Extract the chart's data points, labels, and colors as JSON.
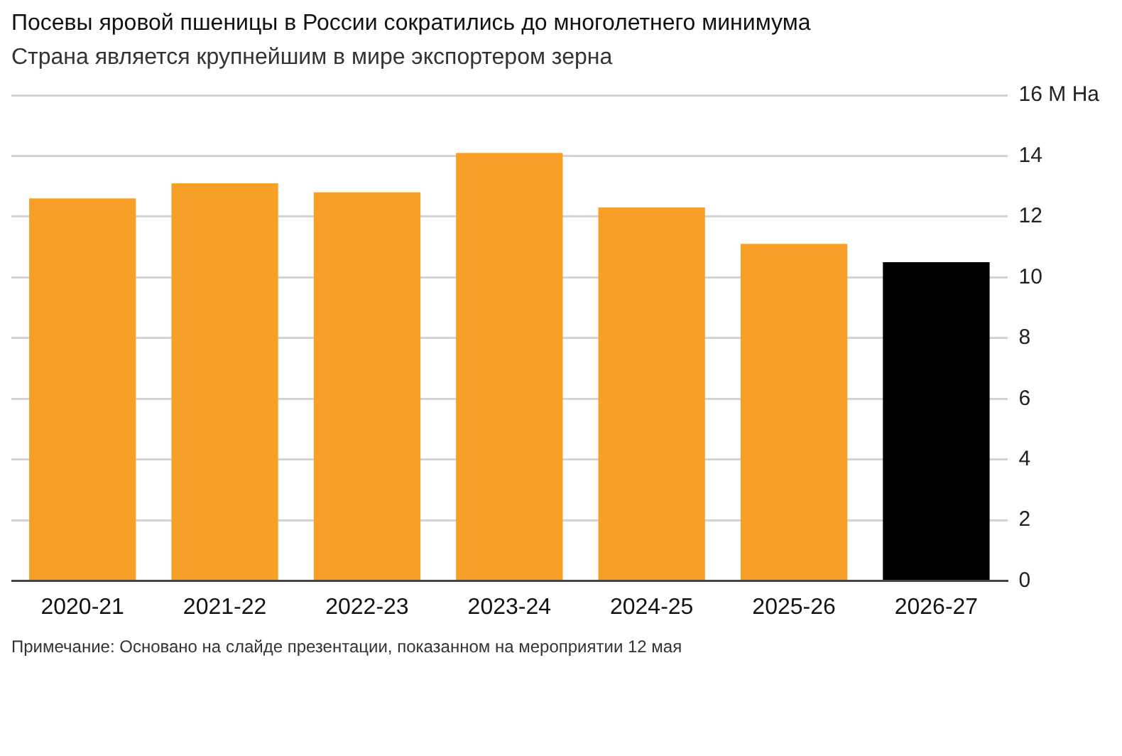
{
  "chart_data": {
    "type": "bar",
    "title": "Посевы яровой пшеницы в России сократились до многолетнего минимума",
    "subtitle": "Страна является крупнейшим в мире экспортером зерна",
    "categories": [
      "2020-21",
      "2021-22",
      "2022-23",
      "2023-24",
      "2024-25",
      "2025-26",
      "2026-27"
    ],
    "values": [
      12.6,
      13.1,
      12.8,
      14.1,
      12.3,
      11.1,
      10.5
    ],
    "colors": [
      "#f89f27",
      "#f89f27",
      "#f89f27",
      "#f89f27",
      "#f89f27",
      "#f89f27",
      "#000000"
    ],
    "ylim": [
      0,
      16
    ],
    "yticks": [
      0,
      2,
      4,
      6,
      8,
      10,
      12,
      14,
      {
        "value": 16,
        "label": "16 M Ha"
      }
    ],
    "grid": "y",
    "annotations": [
      "Примечание: Основано на слайде презентации, показанном на мероприятии 12 мая"
    ]
  }
}
